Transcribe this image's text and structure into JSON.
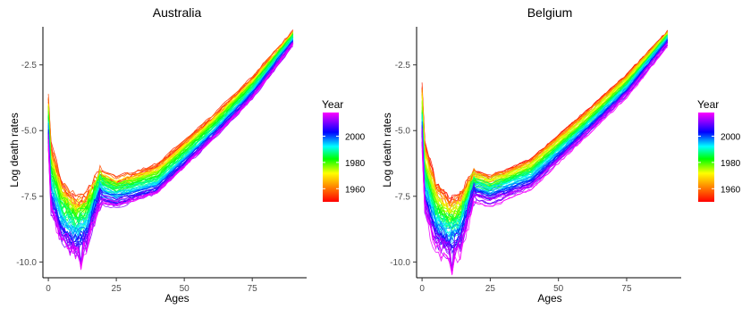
{
  "chart_data": [
    {
      "type": "line",
      "title": "Australia",
      "xlabel": "Ages",
      "ylabel": "Log death rates",
      "xlim": [
        -2,
        95
      ],
      "ylim": [
        -10.6,
        -1.05
      ],
      "xticks": [
        0,
        25,
        50,
        75
      ],
      "xtick_labels": [
        "0",
        "25",
        "50",
        "75"
      ],
      "yticks": [
        -2.5,
        -5.0,
        -7.5,
        -10.0
      ],
      "ytick_labels": [
        "-2.5",
        "-5.0",
        "-7.5",
        "-10.0"
      ],
      "grid": false,
      "legend": {
        "title": "Year",
        "placement": "right",
        "labels": [
          "2000",
          "1980",
          "1960"
        ],
        "label_years": [
          2000,
          1980,
          1960
        ],
        "range": [
          1950,
          2018
        ]
      },
      "year_range": [
        1950,
        2018
      ],
      "age_range": [
        0,
        90
      ],
      "colormap": "rainbow (red→orange→yellow→green→cyan→blue→magenta)",
      "series_summary": [
        {
          "year": 1950,
          "ages": [
            0,
            1,
            5,
            10,
            14,
            19,
            25,
            40,
            60,
            75,
            90
          ],
          "log_rate": [
            -3.8,
            -5.6,
            -7.0,
            -7.6,
            -7.5,
            -6.6,
            -6.9,
            -6.3,
            -4.5,
            -3.0,
            -1.25
          ]
        },
        {
          "year": 1985,
          "ages": [
            0,
            1,
            5,
            10,
            14,
            19,
            25,
            40,
            60,
            75,
            90
          ],
          "log_rate": [
            -4.7,
            -6.9,
            -8.1,
            -8.6,
            -8.3,
            -7.0,
            -7.3,
            -6.9,
            -5.0,
            -3.4,
            -1.45
          ]
        },
        {
          "year": 2018,
          "ages": [
            0,
            1,
            5,
            10,
            14,
            19,
            25,
            40,
            60,
            75,
            90
          ],
          "log_rate": [
            -5.5,
            -8.1,
            -9.3,
            -9.7,
            -9.5,
            -7.8,
            -7.9,
            -7.4,
            -5.4,
            -3.8,
            -1.75
          ]
        }
      ],
      "spike_age": 12,
      "spike_depth": -10.3
    },
    {
      "type": "line",
      "title": "Belgium",
      "xlabel": "Ages",
      "ylabel": "Log death rates",
      "xlim": [
        -2,
        95
      ],
      "ylim": [
        -10.6,
        -1.05
      ],
      "xticks": [
        0,
        25,
        50,
        75
      ],
      "xtick_labels": [
        "0",
        "25",
        "50",
        "75"
      ],
      "yticks": [
        -2.5,
        -5.0,
        -7.5,
        -10.0
      ],
      "ytick_labels": [
        "-2.5",
        "-5.0",
        "-7.5",
        "-10.0"
      ],
      "grid": false,
      "legend": {
        "title": "Year",
        "placement": "right",
        "labels": [
          "2000",
          "1980",
          "1960"
        ],
        "label_years": [
          2000,
          1980,
          1960
        ],
        "range": [
          1950,
          2018
        ]
      },
      "year_range": [
        1950,
        2018
      ],
      "age_range": [
        0,
        90
      ],
      "colormap": "rainbow (red→orange→yellow→green→cyan→blue→magenta)",
      "series_summary": [
        {
          "year": 1950,
          "ages": [
            0,
            1,
            5,
            10,
            14,
            19,
            25,
            40,
            60,
            75,
            90
          ],
          "log_rate": [
            -3.3,
            -5.5,
            -7.0,
            -7.7,
            -7.5,
            -6.6,
            -6.8,
            -6.1,
            -4.3,
            -2.9,
            -1.25
          ]
        },
        {
          "year": 1985,
          "ages": [
            0,
            1,
            5,
            10,
            14,
            19,
            25,
            40,
            60,
            75,
            90
          ],
          "log_rate": [
            -4.6,
            -6.9,
            -8.2,
            -8.7,
            -8.4,
            -7.0,
            -7.2,
            -6.6,
            -4.8,
            -3.3,
            -1.45
          ]
        },
        {
          "year": 2018,
          "ages": [
            0,
            1,
            5,
            10,
            14,
            19,
            25,
            40,
            60,
            75,
            90
          ],
          "log_rate": [
            -5.4,
            -8.1,
            -9.4,
            -9.8,
            -9.6,
            -7.6,
            -7.8,
            -7.2,
            -5.2,
            -3.7,
            -1.75
          ]
        }
      ],
      "spike_age": 11,
      "spike_depth": -10.5
    }
  ]
}
